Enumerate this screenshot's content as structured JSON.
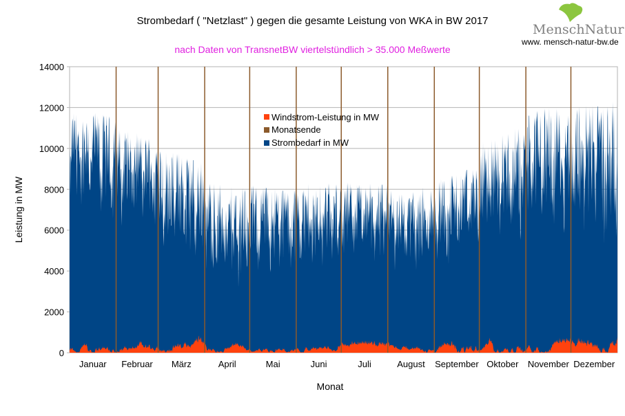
{
  "chart_data": {
    "type": "area",
    "title": "Strombedarf ( \"Netzlast\" ) gegen  die gesamte Leistung von WKA in BW 2017",
    "subtitle": "nach Daten von TransnetBW viertelstündlich > 35.000 Meßwerte",
    "xlabel": "Monat",
    "ylabel": "Leistung in MW",
    "ylim": [
      0,
      14000
    ],
    "yticks": [
      "0",
      "2000",
      "4000",
      "6000",
      "8000",
      "10000",
      "12000",
      "14000"
    ],
    "yticks_values": [
      0,
      2000,
      4000,
      6000,
      8000,
      10000,
      12000,
      14000
    ],
    "grid": true,
    "categories": [
      "Januar",
      "Februar",
      "März",
      "April",
      "Mai",
      "Juni",
      "Juli",
      "August",
      "September",
      "Oktober",
      "November",
      "Dezember"
    ],
    "legend": {
      "placement": "top-center",
      "entries": [
        "Windstrom-Leistung in MW",
        "Monatsende",
        "Strombedarf in MW"
      ]
    },
    "series": [
      {
        "name": "Strombedarf in MW",
        "color": "#004586",
        "monthly_peak": [
          11800,
          10800,
          9800,
          8200,
          8200,
          8300,
          8400,
          8000,
          8800,
          10800,
          12000,
          12300
        ],
        "monthly_trough": [
          7500,
          7000,
          5000,
          3500,
          4200,
          4500,
          4600,
          4300,
          5000,
          6000,
          7000,
          6000
        ]
      },
      {
        "name": "Windstrom-Leistung in MW",
        "color": "#ff420e",
        "monthly_peak": [
          800,
          700,
          950,
          500,
          450,
          500,
          600,
          400,
          950,
          900,
          900,
          1100
        ]
      },
      {
        "name": "Monatsende",
        "color": "#8b5a2b"
      }
    ]
  },
  "logo": {
    "name": "MenschNatur",
    "url": "www. mensch-natur-bw.de"
  }
}
